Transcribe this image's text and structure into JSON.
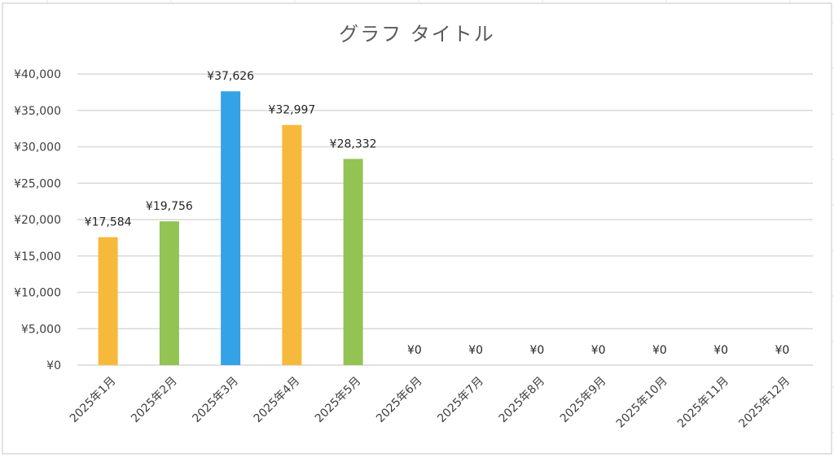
{
  "chart_data": {
    "type": "bar",
    "title": "グラフ タイトル",
    "xlabel": "",
    "ylabel": "",
    "ylim": [
      0,
      40000
    ],
    "yticks": [
      0,
      5000,
      10000,
      15000,
      20000,
      25000,
      30000,
      35000,
      40000
    ],
    "ytick_labels": [
      "¥0",
      "¥5,000",
      "¥10,000",
      "¥15,000",
      "¥20,000",
      "¥25,000",
      "¥30,000",
      "¥35,000",
      "¥40,000"
    ],
    "grid": true,
    "legend": "none",
    "categories": [
      "2025年1月",
      "2025年2月",
      "2025年3月",
      "2025年4月",
      "2025年5月",
      "2025年6月",
      "2025年7月",
      "2025年8月",
      "2025年9月",
      "2025年10月",
      "2025年11月",
      "2025年12月"
    ],
    "values": [
      17584,
      19756,
      37626,
      32997,
      28332,
      0,
      0,
      0,
      0,
      0,
      0,
      0
    ],
    "data_labels": [
      "¥17,584",
      "¥19,756",
      "¥37,626",
      "¥32,997",
      "¥28,332",
      "¥0",
      "¥0",
      "¥0",
      "¥0",
      "¥0",
      "¥0",
      "¥0"
    ],
    "bar_colors": [
      "#f6b93b",
      "#92c353",
      "#33a3e5",
      "#f6b93b",
      "#92c353",
      "#f6b93b",
      "#92c353",
      "#33a3e5",
      "#f6b93b",
      "#92c353",
      "#33a3e5",
      "#f6b93b"
    ]
  }
}
